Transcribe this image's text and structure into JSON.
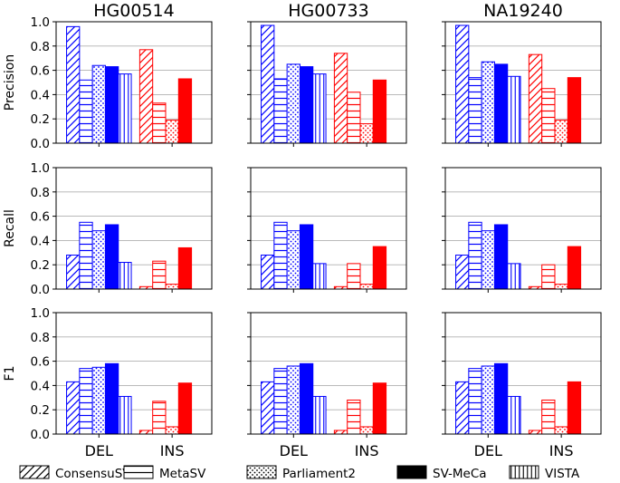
{
  "chart_data": {
    "type": "bar",
    "layout": "3x3 small multiples",
    "samples": [
      "HG00514",
      "HG00733",
      "NA19240"
    ],
    "metrics": [
      "Precision",
      "Recall",
      "F1"
    ],
    "categories": [
      "DEL",
      "INS"
    ],
    "tools": [
      "ConsensuSV",
      "MetaSV",
      "Parliament2",
      "SV-MeCa",
      "VISTA"
    ],
    "patterns": {
      "ConsensuSV": "diagonal",
      "MetaSV": "horizontal",
      "Parliament2": "dots",
      "SV-MeCa": "solid",
      "VISTA": "vertical"
    },
    "colors": {
      "DEL": "#0000ff",
      "INS": "#ff0000"
    },
    "ylim": [
      0,
      1
    ],
    "yticks": [
      "0.0",
      "0.2",
      "0.4",
      "0.6",
      "0.8",
      "1.0"
    ],
    "grid": true,
    "legend": "bottom",
    "panels": [
      {
        "sample": "HG00514",
        "metric": "Precision",
        "series": [
          {
            "name": "ConsensuSV",
            "values": [
              0.96,
              0.77
            ]
          },
          {
            "name": "MetaSV",
            "values": [
              0.52,
              0.33
            ]
          },
          {
            "name": "Parliament2",
            "values": [
              0.64,
              0.19
            ]
          },
          {
            "name": "SV-MeCa",
            "values": [
              0.63,
              0.53
            ]
          },
          {
            "name": "VISTA",
            "values": [
              0.57,
              0.0
            ]
          }
        ]
      },
      {
        "sample": "HG00733",
        "metric": "Precision",
        "series": [
          {
            "name": "ConsensuSV",
            "values": [
              0.97,
              0.74
            ]
          },
          {
            "name": "MetaSV",
            "values": [
              0.53,
              0.42
            ]
          },
          {
            "name": "Parliament2",
            "values": [
              0.65,
              0.16
            ]
          },
          {
            "name": "SV-MeCa",
            "values": [
              0.63,
              0.52
            ]
          },
          {
            "name": "VISTA",
            "values": [
              0.57,
              0.0
            ]
          }
        ]
      },
      {
        "sample": "NA19240",
        "metric": "Precision",
        "series": [
          {
            "name": "ConsensuSV",
            "values": [
              0.97,
              0.73
            ]
          },
          {
            "name": "MetaSV",
            "values": [
              0.54,
              0.45
            ]
          },
          {
            "name": "Parliament2",
            "values": [
              0.67,
              0.19
            ]
          },
          {
            "name": "SV-MeCa",
            "values": [
              0.65,
              0.54
            ]
          },
          {
            "name": "VISTA",
            "values": [
              0.55,
              0.0
            ]
          }
        ]
      },
      {
        "sample": "HG00514",
        "metric": "Recall",
        "series": [
          {
            "name": "ConsensuSV",
            "values": [
              0.28,
              0.02
            ]
          },
          {
            "name": "MetaSV",
            "values": [
              0.55,
              0.23
            ]
          },
          {
            "name": "Parliament2",
            "values": [
              0.48,
              0.04
            ]
          },
          {
            "name": "SV-MeCa",
            "values": [
              0.53,
              0.34
            ]
          },
          {
            "name": "VISTA",
            "values": [
              0.22,
              0.0
            ]
          }
        ]
      },
      {
        "sample": "HG00733",
        "metric": "Recall",
        "series": [
          {
            "name": "ConsensuSV",
            "values": [
              0.28,
              0.02
            ]
          },
          {
            "name": "MetaSV",
            "values": [
              0.55,
              0.21
            ]
          },
          {
            "name": "Parliament2",
            "values": [
              0.48,
              0.04
            ]
          },
          {
            "name": "SV-MeCa",
            "values": [
              0.53,
              0.35
            ]
          },
          {
            "name": "VISTA",
            "values": [
              0.21,
              0.0
            ]
          }
        ]
      },
      {
        "sample": "NA19240",
        "metric": "Recall",
        "series": [
          {
            "name": "ConsensuSV",
            "values": [
              0.28,
              0.02
            ]
          },
          {
            "name": "MetaSV",
            "values": [
              0.55,
              0.2
            ]
          },
          {
            "name": "Parliament2",
            "values": [
              0.48,
              0.04
            ]
          },
          {
            "name": "SV-MeCa",
            "values": [
              0.53,
              0.35
            ]
          },
          {
            "name": "VISTA",
            "values": [
              0.21,
              0.0
            ]
          }
        ]
      },
      {
        "sample": "HG00514",
        "metric": "F1",
        "series": [
          {
            "name": "ConsensuSV",
            "values": [
              0.43,
              0.03
            ]
          },
          {
            "name": "MetaSV",
            "values": [
              0.54,
              0.27
            ]
          },
          {
            "name": "Parliament2",
            "values": [
              0.55,
              0.06
            ]
          },
          {
            "name": "SV-MeCa",
            "values": [
              0.58,
              0.42
            ]
          },
          {
            "name": "VISTA",
            "values": [
              0.31,
              0.0
            ]
          }
        ]
      },
      {
        "sample": "HG00733",
        "metric": "F1",
        "series": [
          {
            "name": "ConsensuSV",
            "values": [
              0.43,
              0.03
            ]
          },
          {
            "name": "MetaSV",
            "values": [
              0.54,
              0.28
            ]
          },
          {
            "name": "Parliament2",
            "values": [
              0.56,
              0.06
            ]
          },
          {
            "name": "SV-MeCa",
            "values": [
              0.58,
              0.42
            ]
          },
          {
            "name": "VISTA",
            "values": [
              0.31,
              0.0
            ]
          }
        ]
      },
      {
        "sample": "NA19240",
        "metric": "F1",
        "series": [
          {
            "name": "ConsensuSV",
            "values": [
              0.43,
              0.03
            ]
          },
          {
            "name": "MetaSV",
            "values": [
              0.54,
              0.28
            ]
          },
          {
            "name": "Parliament2",
            "values": [
              0.56,
              0.06
            ]
          },
          {
            "name": "SV-MeCa",
            "values": [
              0.58,
              0.43
            ]
          },
          {
            "name": "VISTA",
            "values": [
              0.31,
              0.0
            ]
          }
        ]
      }
    ]
  }
}
